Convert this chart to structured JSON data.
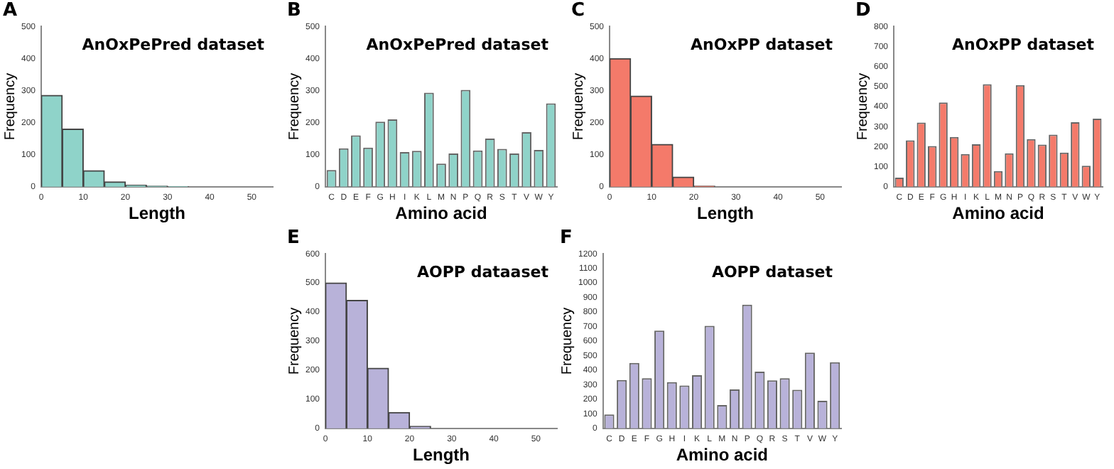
{
  "chart_data": [
    {
      "type": "histogram",
      "title": "AnOxPePred dataset",
      "xlabel": "Length",
      "ylabel": "Frequency",
      "annotations": [
        "A"
      ],
      "bins": [
        0,
        5,
        10,
        15,
        20,
        25,
        30,
        35
      ],
      "values": [
        285,
        180,
        50,
        15,
        5,
        2,
        1
      ],
      "color": "#8fd3c9",
      "xlim": [
        0,
        55
      ],
      "xticks": [
        0,
        10,
        20,
        30,
        40,
        50
      ],
      "ylim": [
        0,
        500
      ],
      "yticks": [
        0,
        100,
        200,
        300,
        400,
        500
      ]
    },
    {
      "type": "bar",
      "title": "AnOxPePred dataset",
      "xlabel": "Amino acid",
      "ylabel": "Frequency",
      "annotations": [
        "B"
      ],
      "categories": [
        "C",
        "D",
        "E",
        "F",
        "G",
        "H",
        "I",
        "K",
        "L",
        "M",
        "N",
        "P",
        "Q",
        "R",
        "S",
        "T",
        "V",
        "W",
        "Y"
      ],
      "values": [
        52,
        120,
        160,
        122,
        203,
        210,
        108,
        112,
        293,
        72,
        104,
        302,
        113,
        150,
        118,
        104,
        170,
        115,
        260
      ],
      "color": "#8fd3c9",
      "ylim": [
        0,
        500
      ],
      "yticks": [
        0,
        100,
        200,
        300,
        400,
        500
      ]
    },
    {
      "type": "histogram",
      "title": "AnOxPP dataset",
      "xlabel": "Length",
      "ylabel": "Frequency",
      "annotations": [
        "C"
      ],
      "bins": [
        0,
        5,
        10,
        15,
        20,
        25
      ],
      "values": [
        400,
        283,
        132,
        30,
        2
      ],
      "color": "#f47a6a",
      "xlim": [
        0,
        55
      ],
      "xticks": [
        0,
        10,
        20,
        30,
        40,
        50
      ],
      "ylim": [
        0,
        500
      ],
      "yticks": [
        0,
        100,
        200,
        300,
        400,
        500
      ]
    },
    {
      "type": "bar",
      "title": "AnOxPP dataset",
      "xlabel": "Amino acid",
      "ylabel": "Frequency",
      "annotations": [
        "D"
      ],
      "categories": [
        "C",
        "D",
        "E",
        "F",
        "G",
        "H",
        "I",
        "K",
        "L",
        "M",
        "N",
        "P",
        "Q",
        "R",
        "S",
        "T",
        "V",
        "W",
        "Y"
      ],
      "values": [
        45,
        232,
        320,
        203,
        420,
        248,
        163,
        212,
        512,
        78,
        167,
        507,
        238,
        210,
        260,
        170,
        322,
        105,
        340
      ],
      "color": "#f47a6a",
      "ylim": [
        0,
        800
      ],
      "yticks": [
        0,
        100,
        200,
        300,
        400,
        500,
        600,
        700,
        800
      ]
    },
    {
      "type": "histogram",
      "title": "AOPP dataaset",
      "xlabel": "Length",
      "ylabel": "Frequency",
      "annotations": [
        "E"
      ],
      "bins": [
        0,
        5,
        10,
        15,
        20,
        25
      ],
      "values": [
        500,
        440,
        207,
        55,
        7
      ],
      "color": "#b8b2d9",
      "xlim": [
        0,
        55
      ],
      "xticks": [
        0,
        10,
        20,
        30,
        40,
        50
      ],
      "ylim": [
        0,
        600
      ],
      "yticks": [
        0,
        100,
        200,
        300,
        400,
        500,
        600
      ]
    },
    {
      "type": "bar",
      "title": "AOPP dataset",
      "xlabel": "Amino acid",
      "ylabel": "Frequency",
      "annotations": [
        "F"
      ],
      "categories": [
        "C",
        "D",
        "E",
        "F",
        "G",
        "H",
        "I",
        "K",
        "L",
        "M",
        "N",
        "P",
        "Q",
        "R",
        "S",
        "T",
        "V",
        "W",
        "Y"
      ],
      "values": [
        95,
        333,
        450,
        345,
        672,
        318,
        295,
        365,
        705,
        160,
        268,
        850,
        390,
        330,
        345,
        265,
        520,
        190,
        455
      ],
      "color": "#b8b2d9",
      "ylim": [
        0,
        1200
      ],
      "yticks": [
        0,
        100,
        200,
        300,
        400,
        500,
        600,
        700,
        800,
        900,
        1000,
        1100,
        1200
      ]
    }
  ]
}
